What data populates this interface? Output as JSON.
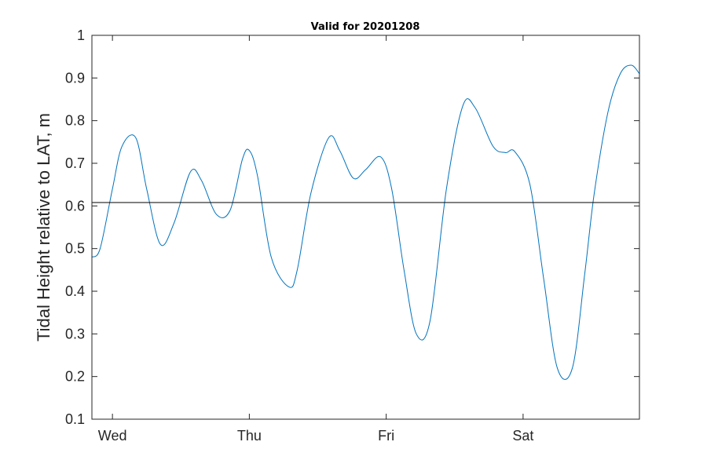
{
  "chart_data": {
    "type": "line",
    "title": "Valid for 20201208",
    "xlabel": "",
    "ylabel": "Tidal Height relative to LAT, m",
    "xlim": [
      -0.15,
      3.85
    ],
    "ylim": [
      0.1,
      1.0
    ],
    "grid": false,
    "x_ticks": [
      {
        "value": 0,
        "label": "Wed"
      },
      {
        "value": 1,
        "label": "Thu"
      },
      {
        "value": 2,
        "label": "Fri"
      },
      {
        "value": 3,
        "label": "Sat"
      }
    ],
    "y_ticks": [
      {
        "value": 0.1,
        "label": "0.1"
      },
      {
        "value": 0.2,
        "label": "0.2"
      },
      {
        "value": 0.3,
        "label": "0.3"
      },
      {
        "value": 0.4,
        "label": "0.4"
      },
      {
        "value": 0.5,
        "label": "0.5"
      },
      {
        "value": 0.6,
        "label": "0.6"
      },
      {
        "value": 0.7,
        "label": "0.7"
      },
      {
        "value": 0.8,
        "label": "0.8"
      },
      {
        "value": 0.9,
        "label": "0.9"
      },
      {
        "value": 1.0,
        "label": "1"
      }
    ],
    "reference_line": {
      "y": 0.608,
      "color": "#000000"
    },
    "series": [
      {
        "color": "#0072BD",
        "x": [
          -0.15,
          -0.09,
          0.0,
          0.07,
          0.17,
          0.25,
          0.35,
          0.45,
          0.57,
          0.65,
          0.76,
          0.86,
          0.95,
          1.0,
          1.06,
          1.16,
          1.29,
          1.35,
          1.45,
          1.58,
          1.66,
          1.76,
          1.85,
          1.96,
          2.04,
          2.13,
          2.22,
          2.32,
          2.44,
          2.56,
          2.65,
          2.78,
          2.87,
          2.94,
          3.05,
          3.15,
          3.25,
          3.36,
          3.45,
          3.52,
          3.62,
          3.71,
          3.79,
          3.85
        ],
        "y": [
          0.48,
          0.5,
          0.64,
          0.74,
          0.76,
          0.64,
          0.51,
          0.56,
          0.68,
          0.66,
          0.58,
          0.59,
          0.71,
          0.73,
          0.67,
          0.48,
          0.41,
          0.45,
          0.63,
          0.76,
          0.73,
          0.665,
          0.685,
          0.715,
          0.64,
          0.45,
          0.3,
          0.33,
          0.64,
          0.835,
          0.83,
          0.74,
          0.725,
          0.727,
          0.65,
          0.43,
          0.22,
          0.22,
          0.44,
          0.63,
          0.82,
          0.91,
          0.93,
          0.91
        ]
      }
    ]
  }
}
